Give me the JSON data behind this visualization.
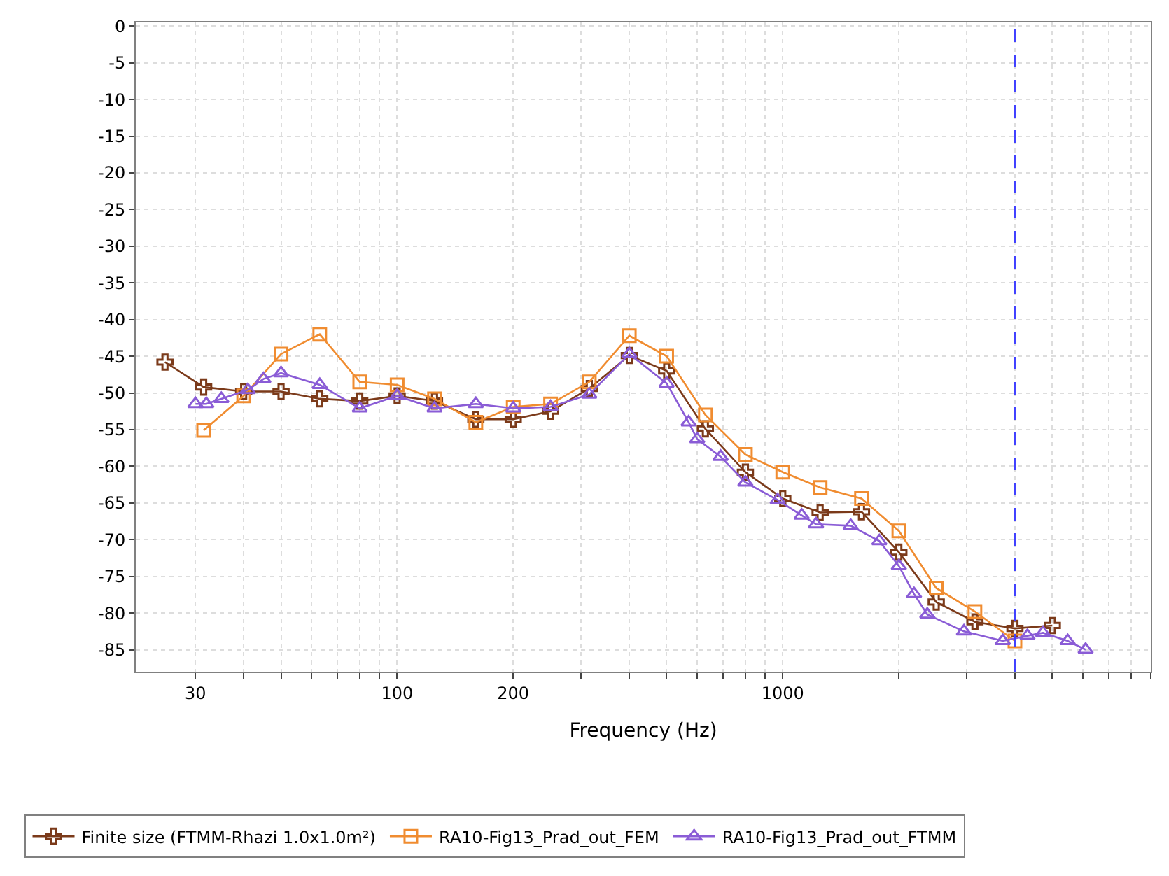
{
  "chart_data": {
    "type": "line",
    "xlabel": "Frequency (Hz)",
    "log": "x",
    "grid": true,
    "legend": "bottom",
    "xlim": [
      21,
      9000
    ],
    "ylim": [
      -88,
      0.5
    ],
    "xticks": [
      {
        "value": 30,
        "label": "30"
      },
      {
        "value": 40,
        "label": null
      },
      {
        "value": 50,
        "label": null
      },
      {
        "value": 60,
        "label": null
      },
      {
        "value": 70,
        "label": null
      },
      {
        "value": 80,
        "label": null
      },
      {
        "value": 90,
        "label": null
      },
      100,
      200,
      {
        "value": 300,
        "label": null
      },
      {
        "value": 400,
        "label": null
      },
      {
        "value": 500,
        "label": null
      },
      {
        "value": 600,
        "label": null
      },
      {
        "value": 700,
        "label": null
      },
      {
        "value": 800,
        "label": null
      },
      {
        "value": 900,
        "label": null
      },
      1000,
      {
        "value": 2000,
        "label": null
      },
      {
        "value": 3000,
        "label": null
      },
      {
        "value": 4000,
        "label": null
      },
      {
        "value": 5000,
        "label": null
      },
      {
        "value": 6000,
        "label": null
      },
      {
        "value": 7000,
        "label": null
      },
      {
        "value": 8000,
        "label": null
      },
      {
        "value": 9000,
        "label": null
      }
    ],
    "yticks": [
      0,
      -5,
      -10,
      -15,
      -20,
      -25,
      -30,
      -35,
      -40,
      -45,
      -50,
      -55,
      -60,
      -65,
      -70,
      -75,
      -80,
      -85
    ],
    "ref_lines": [
      {
        "axis": "x",
        "value": 4000,
        "color": "#4040ff",
        "line_style": "dashed"
      }
    ],
    "series": [
      {
        "name": "Finite size (FTMM-Rhazi 1.0x1.0m²)",
        "color": "#7b3a1a",
        "marker": "cross",
        "x": [
          25,
          31.5,
          40,
          50,
          63,
          80,
          100,
          125,
          160,
          200,
          250,
          315,
          400,
          500,
          630,
          800,
          1000,
          1250,
          1600,
          2000,
          2500,
          3150,
          4000,
          5000
        ],
        "values": [
          -45.8,
          -49.2,
          -49.8,
          -49.8,
          -50.8,
          -51.1,
          -50.4,
          -51.1,
          -53.6,
          -53.6,
          -52.5,
          -49.4,
          -44.9,
          -47,
          -54.9,
          -60.8,
          -64.4,
          -66.3,
          -66.2,
          -71.7,
          -78.5,
          -81.2,
          -82.1,
          -81.7
        ]
      },
      {
        "name": "RA10-Fig13_Prad_out_FEM",
        "color": "#f08c30",
        "marker": "square",
        "x": [
          31.5,
          40,
          50,
          63,
          80,
          100,
          125,
          160,
          200,
          250,
          315,
          400,
          500,
          630,
          800,
          1000,
          1250,
          1600,
          2000,
          2500,
          3150,
          4000
        ],
        "values": [
          -55.1,
          -50.4,
          -44.7,
          -42.0,
          -48.5,
          -48.9,
          -50.8,
          -54.0,
          -51.9,
          -51.5,
          -48.5,
          -42.2,
          -45.0,
          -53.0,
          -58.4,
          -60.8,
          -62.9,
          -64.4,
          -68.8,
          -76.6,
          -79.8,
          -83.8
        ]
      },
      {
        "name": "RA10-Fig13_Prad_out_FTMM",
        "color": "#8a5cd6",
        "marker": "triangle",
        "x": [
          30,
          32,
          35,
          41,
          45,
          50,
          63,
          80,
          100,
          125,
          160,
          200,
          250,
          315,
          400,
          500,
          570,
          600,
          690,
          800,
          970,
          1120,
          1220,
          1500,
          1780,
          2000,
          2190,
          2370,
          2950,
          3720,
          4310,
          4730,
          5480,
          6100
        ],
        "values": [
          -51.5,
          -51.5,
          -50.8,
          -49.6,
          -48.1,
          -47.3,
          -48.9,
          -52.1,
          -50.4,
          -52.1,
          -51.5,
          -52.1,
          -51.9,
          -50.2,
          -44.7,
          -48.7,
          -54.0,
          -56.3,
          -58.7,
          -62.2,
          -64.6,
          -66.7,
          -67.9,
          -68.1,
          -70.2,
          -73.6,
          -77.4,
          -80.2,
          -82.5,
          -83.8,
          -83.1,
          -82.7,
          -83.8,
          -85.0
        ]
      }
    ]
  }
}
